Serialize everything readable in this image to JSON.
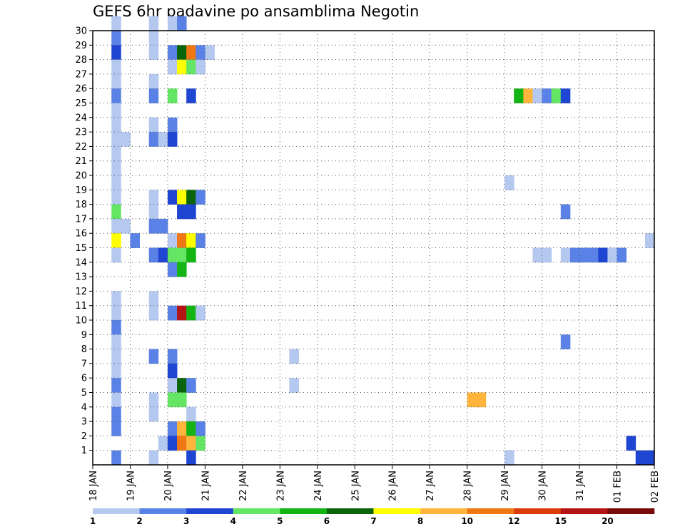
{
  "chart_data": {
    "type": "heatmap",
    "title": "GEFS 6hr padavine po ansamblima Negotin",
    "xlabel": "",
    "ylabel": "",
    "x_tick_labels": [
      "18 JAN",
      "19 JAN",
      "20 JAN",
      "21 JAN",
      "22 JAN",
      "23 JAN",
      "24 JAN",
      "25 JAN",
      "26 JAN",
      "27 JAN",
      "28 JAN",
      "29 JAN",
      "30 JAN",
      "31 JAN",
      "01 FEB",
      "02 FEB"
    ],
    "y_tick_labels": [
      "1",
      "2",
      "3",
      "4",
      "5",
      "6",
      "7",
      "8",
      "9",
      "10",
      "11",
      "12",
      "13",
      "14",
      "15",
      "16",
      "17",
      "18",
      "19",
      "20",
      "21",
      "22",
      "23",
      "24",
      "25",
      "26",
      "27",
      "28",
      "29",
      "30"
    ],
    "ylim": [
      0,
      30
    ],
    "x_steps_per_day": 4,
    "grid": true,
    "legend_placement": "bottom",
    "color_levels": [
      {
        "label": "1",
        "color": "#b4c8f0"
      },
      {
        "label": "2",
        "color": "#5a82e6"
      },
      {
        "label": "3",
        "color": "#1e46d2"
      },
      {
        "label": "4",
        "color": "#64e664"
      },
      {
        "label": "5",
        "color": "#14b414"
      },
      {
        "label": "6",
        "color": "#0a640a"
      },
      {
        "label": "7",
        "color": "#ffff00"
      },
      {
        "label": "8",
        "color": "#ffb43c"
      },
      {
        "label": "10",
        "color": "#f07814"
      },
      {
        "label": "12",
        "color": "#dc3c0a"
      },
      {
        "label": "15",
        "color": "#b41414"
      },
      {
        "label": "20",
        "color": "#780a0a"
      }
    ],
    "cells": [
      {
        "m": 30,
        "s": 2,
        "c": 0
      },
      {
        "m": 30,
        "s": 6,
        "c": 0
      },
      {
        "m": 30,
        "s": 8,
        "c": 0
      },
      {
        "m": 30,
        "s": 9,
        "c": 1
      },
      {
        "m": 29,
        "s": 2,
        "c": 1
      },
      {
        "m": 29,
        "s": 6,
        "c": 0
      },
      {
        "m": 28,
        "s": 2,
        "c": 2
      },
      {
        "m": 28,
        "s": 6,
        "c": 0
      },
      {
        "m": 28,
        "s": 8,
        "c": 1
      },
      {
        "m": 28,
        "s": 9,
        "c": 5
      },
      {
        "m": 28,
        "s": 10,
        "c": 8
      },
      {
        "m": 28,
        "s": 11,
        "c": 1
      },
      {
        "m": 28,
        "s": 12,
        "c": 0
      },
      {
        "m": 27,
        "s": 2,
        "c": 0
      },
      {
        "m": 27,
        "s": 8,
        "c": 0
      },
      {
        "m": 27,
        "s": 9,
        "c": 6
      },
      {
        "m": 27,
        "s": 10,
        "c": 3
      },
      {
        "m": 27,
        "s": 11,
        "c": 0
      },
      {
        "m": 26,
        "s": 2,
        "c": 0
      },
      {
        "m": 26,
        "s": 6,
        "c": 0
      },
      {
        "m": 25,
        "s": 2,
        "c": 1
      },
      {
        "m": 25,
        "s": 6,
        "c": 1
      },
      {
        "m": 25,
        "s": 8,
        "c": 3
      },
      {
        "m": 25,
        "s": 10,
        "c": 2
      },
      {
        "m": 25,
        "s": 45,
        "c": 4
      },
      {
        "m": 25,
        "s": 46,
        "c": 7
      },
      {
        "m": 25,
        "s": 47,
        "c": 0
      },
      {
        "m": 25,
        "s": 48,
        "c": 1
      },
      {
        "m": 25,
        "s": 49,
        "c": 3
      },
      {
        "m": 25,
        "s": 50,
        "c": 2
      },
      {
        "m": 24,
        "s": 2,
        "c": 0
      },
      {
        "m": 23,
        "s": 2,
        "c": 0
      },
      {
        "m": 23,
        "s": 6,
        "c": 0
      },
      {
        "m": 23,
        "s": 8,
        "c": 1
      },
      {
        "m": 22,
        "s": 2,
        "c": 0
      },
      {
        "m": 22,
        "s": 3,
        "c": 0
      },
      {
        "m": 22,
        "s": 6,
        "c": 1
      },
      {
        "m": 22,
        "s": 7,
        "c": 0
      },
      {
        "m": 22,
        "s": 8,
        "c": 2
      },
      {
        "m": 21,
        "s": 2,
        "c": 0
      },
      {
        "m": 20,
        "s": 2,
        "c": 0
      },
      {
        "m": 19,
        "s": 2,
        "c": 0
      },
      {
        "m": 19,
        "s": 44,
        "c": 0
      },
      {
        "m": 18,
        "s": 2,
        "c": 0
      },
      {
        "m": 18,
        "s": 6,
        "c": 0
      },
      {
        "m": 18,
        "s": 8,
        "c": 2
      },
      {
        "m": 18,
        "s": 9,
        "c": 6
      },
      {
        "m": 18,
        "s": 10,
        "c": 5
      },
      {
        "m": 18,
        "s": 11,
        "c": 1
      },
      {
        "m": 17,
        "s": 2,
        "c": 3
      },
      {
        "m": 17,
        "s": 6,
        "c": 0
      },
      {
        "m": 17,
        "s": 9,
        "c": 2
      },
      {
        "m": 17,
        "s": 10,
        "c": 2
      },
      {
        "m": 17,
        "s": 50,
        "c": 1
      },
      {
        "m": 16,
        "s": 2,
        "c": 0
      },
      {
        "m": 16,
        "s": 3,
        "c": 0
      },
      {
        "m": 16,
        "s": 6,
        "c": 1
      },
      {
        "m": 16,
        "s": 7,
        "c": 1
      },
      {
        "m": 15,
        "s": 2,
        "c": 6
      },
      {
        "m": 15,
        "s": 4,
        "c": 1
      },
      {
        "m": 15,
        "s": 8,
        "c": 0
      },
      {
        "m": 15,
        "s": 9,
        "c": 8
      },
      {
        "m": 15,
        "s": 10,
        "c": 6
      },
      {
        "m": 15,
        "s": 11,
        "c": 1
      },
      {
        "m": 15,
        "s": 59,
        "c": 0
      },
      {
        "m": 14,
        "s": 2,
        "c": 0
      },
      {
        "m": 14,
        "s": 6,
        "c": 1
      },
      {
        "m": 14,
        "s": 7,
        "c": 2
      },
      {
        "m": 14,
        "s": 8,
        "c": 3
      },
      {
        "m": 14,
        "s": 9,
        "c": 3
      },
      {
        "m": 14,
        "s": 10,
        "c": 4
      },
      {
        "m": 14,
        "s": 47,
        "c": 0
      },
      {
        "m": 14,
        "s": 48,
        "c": 0
      },
      {
        "m": 14,
        "s": 50,
        "c": 0
      },
      {
        "m": 14,
        "s": 51,
        "c": 1
      },
      {
        "m": 14,
        "s": 52,
        "c": 1
      },
      {
        "m": 14,
        "s": 53,
        "c": 1
      },
      {
        "m": 14,
        "s": 54,
        "c": 2
      },
      {
        "m": 14,
        "s": 55,
        "c": 0
      },
      {
        "m": 14,
        "s": 56,
        "c": 1
      },
      {
        "m": 13,
        "s": 8,
        "c": 1
      },
      {
        "m": 13,
        "s": 9,
        "c": 4
      },
      {
        "m": 11,
        "s": 2,
        "c": 0
      },
      {
        "m": 11,
        "s": 6,
        "c": 0
      },
      {
        "m": 10,
        "s": 2,
        "c": 0
      },
      {
        "m": 10,
        "s": 6,
        "c": 0
      },
      {
        "m": 10,
        "s": 8,
        "c": 1
      },
      {
        "m": 10,
        "s": 9,
        "c": 10
      },
      {
        "m": 10,
        "s": 10,
        "c": 4
      },
      {
        "m": 10,
        "s": 11,
        "c": 0
      },
      {
        "m": 9,
        "s": 2,
        "c": 1
      },
      {
        "m": 8,
        "s": 2,
        "c": 0
      },
      {
        "m": 8,
        "s": 50,
        "c": 1
      },
      {
        "m": 7,
        "s": 2,
        "c": 0
      },
      {
        "m": 7,
        "s": 6,
        "c": 1
      },
      {
        "m": 7,
        "s": 8,
        "c": 1
      },
      {
        "m": 7,
        "s": 21,
        "c": 0
      },
      {
        "m": 6,
        "s": 2,
        "c": 0
      },
      {
        "m": 6,
        "s": 8,
        "c": 2
      },
      {
        "m": 5,
        "s": 2,
        "c": 1
      },
      {
        "m": 5,
        "s": 8,
        "c": 0
      },
      {
        "m": 5,
        "s": 9,
        "c": 5
      },
      {
        "m": 5,
        "s": 10,
        "c": 1
      },
      {
        "m": 5,
        "s": 21,
        "c": 0
      },
      {
        "m": 4,
        "s": 2,
        "c": 0
      },
      {
        "m": 4,
        "s": 6,
        "c": 0
      },
      {
        "m": 4,
        "s": 8,
        "c": 3
      },
      {
        "m": 4,
        "s": 9,
        "c": 3
      },
      {
        "m": 4,
        "s": 40,
        "c": 7
      },
      {
        "m": 4,
        "s": 41,
        "c": 7
      },
      {
        "m": 3,
        "s": 2,
        "c": 1
      },
      {
        "m": 3,
        "s": 6,
        "c": 0
      },
      {
        "m": 3,
        "s": 10,
        "c": 0
      },
      {
        "m": 2,
        "s": 2,
        "c": 1
      },
      {
        "m": 2,
        "s": 8,
        "c": 1
      },
      {
        "m": 2,
        "s": 9,
        "c": 7
      },
      {
        "m": 2,
        "s": 10,
        "c": 4
      },
      {
        "m": 2,
        "s": 11,
        "c": 1
      },
      {
        "m": 1,
        "s": 7,
        "c": 0
      },
      {
        "m": 1,
        "s": 8,
        "c": 2
      },
      {
        "m": 1,
        "s": 9,
        "c": 8
      },
      {
        "m": 1,
        "s": 10,
        "c": 7
      },
      {
        "m": 1,
        "s": 11,
        "c": 3
      },
      {
        "m": 1,
        "s": 57,
        "c": 2
      },
      {
        "m": 0,
        "s": 2,
        "c": 1
      },
      {
        "m": 0,
        "s": 6,
        "c": 0
      },
      {
        "m": 0,
        "s": 10,
        "c": 2
      },
      {
        "m": 0,
        "s": 44,
        "c": 0
      },
      {
        "m": 0,
        "s": 58,
        "c": 2
      },
      {
        "m": 0,
        "s": 59,
        "c": 2
      }
    ]
  }
}
